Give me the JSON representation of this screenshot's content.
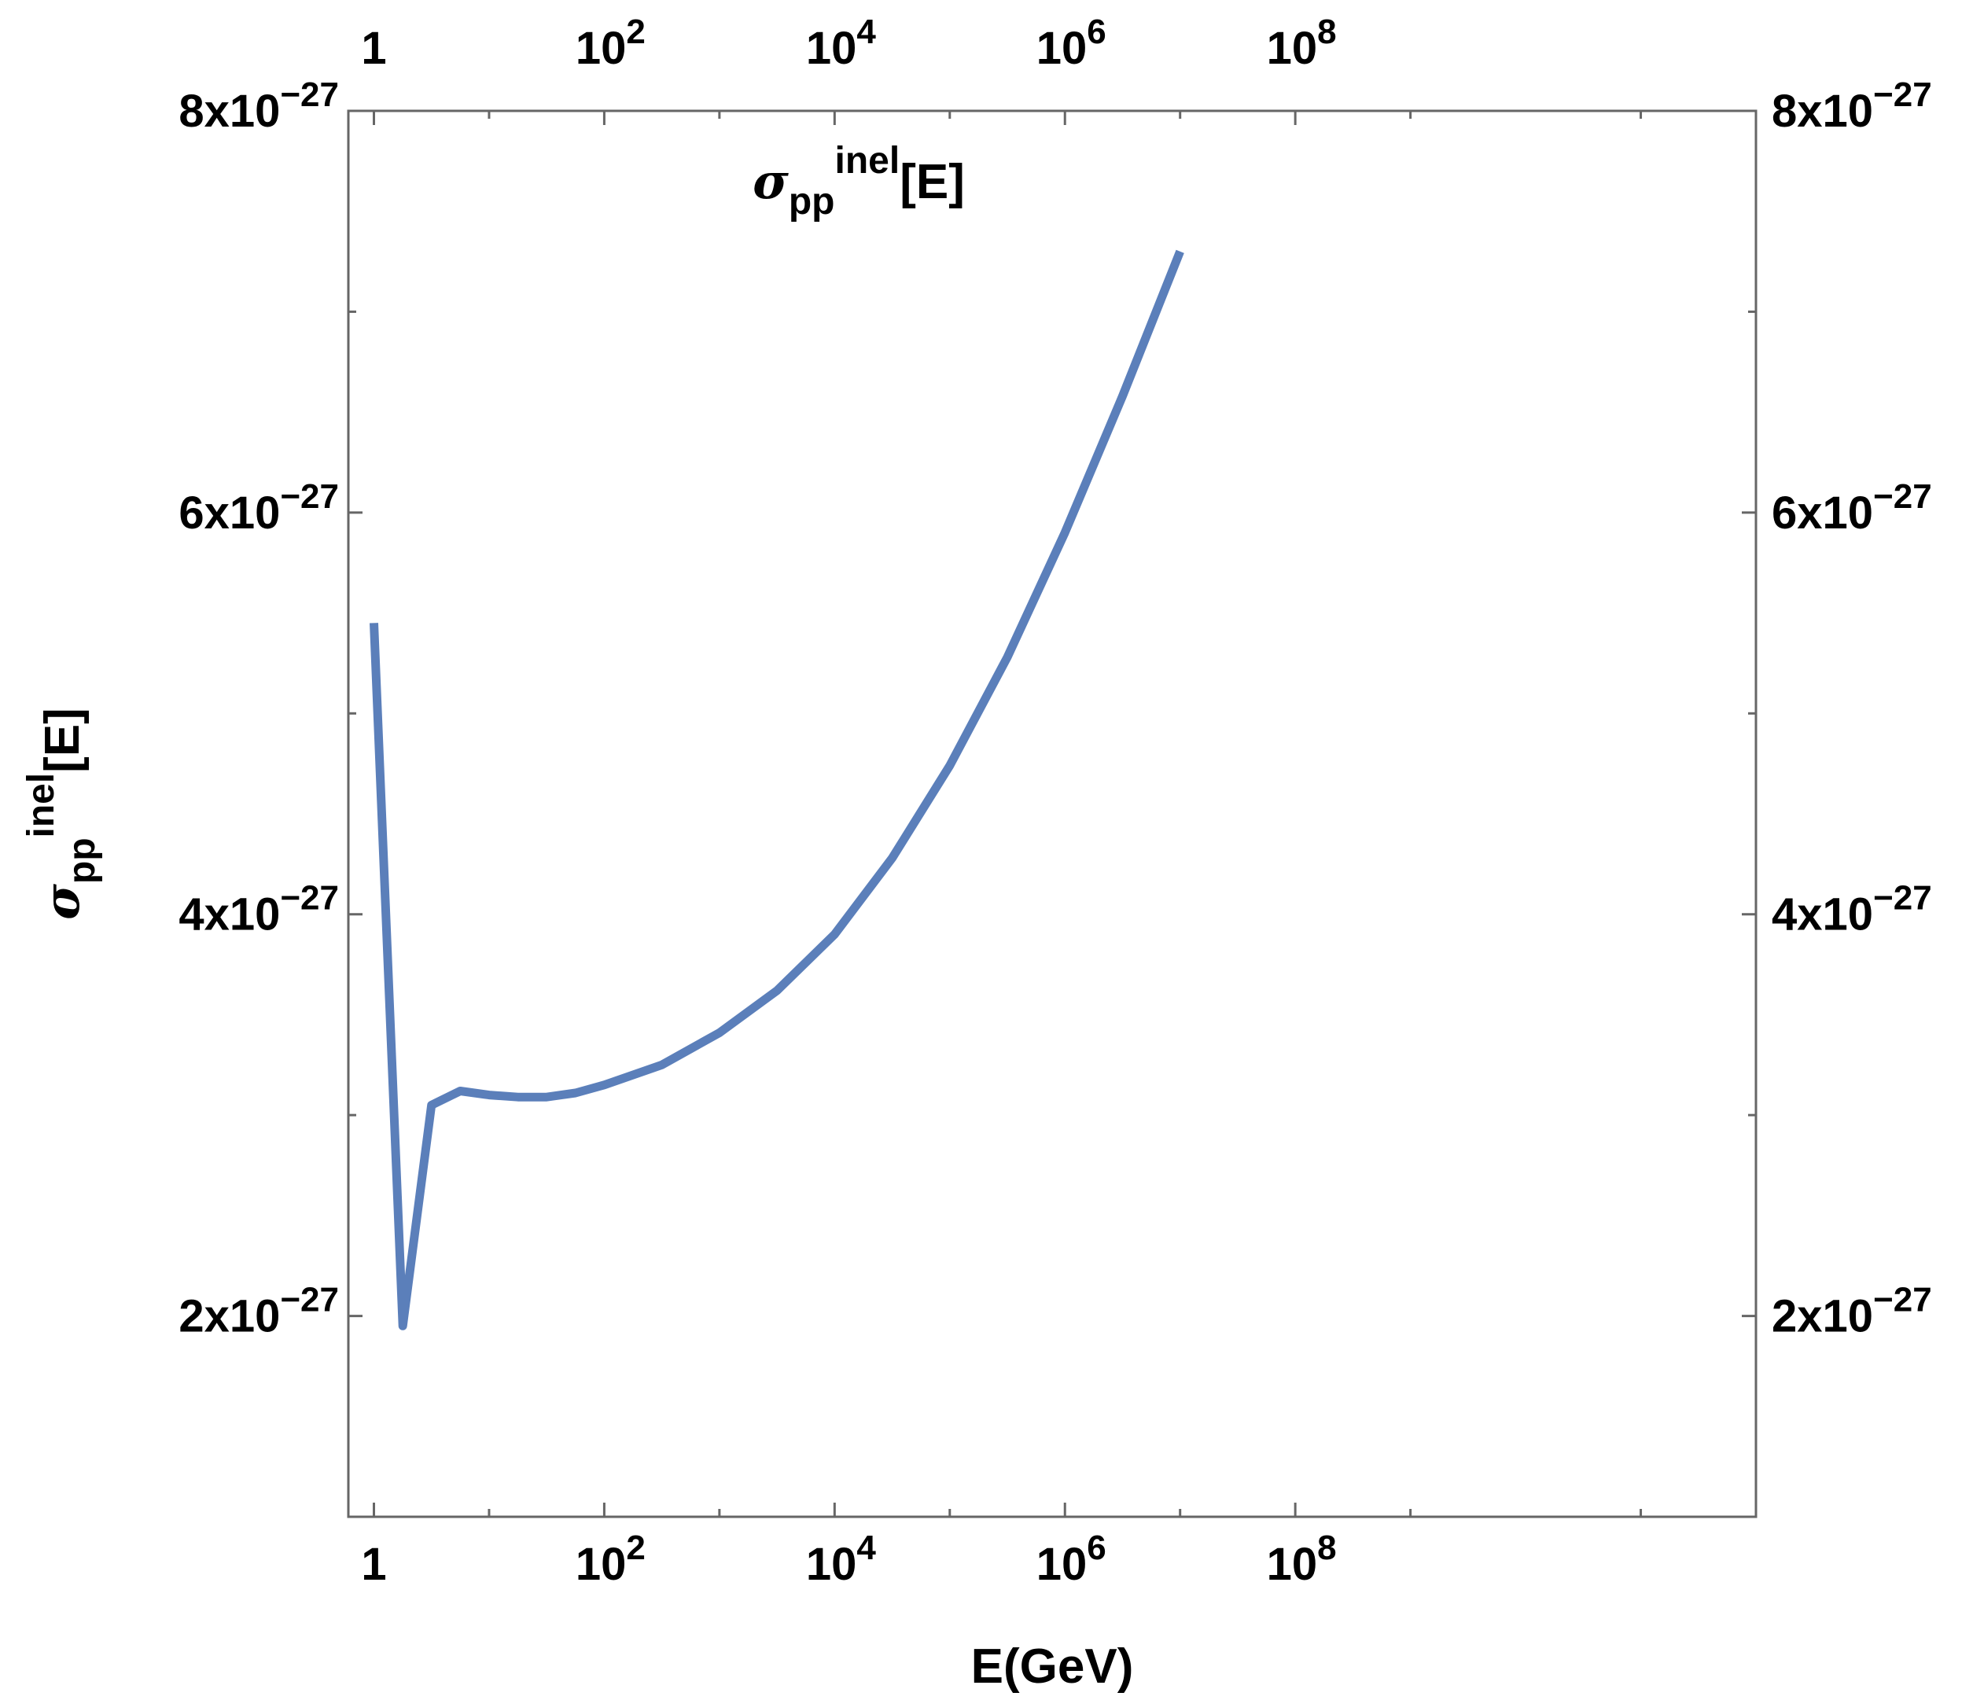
{
  "chart_data": {
    "type": "line",
    "title": "σ_pp^inel[E]",
    "title_parts": {
      "sigma": "σ",
      "sub": "pp",
      "sup": "inel",
      "arg": "[E]"
    },
    "xlabel": "E(GeV)",
    "ylabel_parts": {
      "sigma": "σ",
      "sub": "pp",
      "sup": "inel",
      "arg": "[E]"
    },
    "x_scale": "log",
    "xlim": [
      0.6,
      1000000000000.0
    ],
    "ylim": [
      1e-27,
      8e-27
    ],
    "x_ticks": [
      {
        "value": 1,
        "mant": "1",
        "exp": ""
      },
      {
        "value": 100,
        "mant": "10",
        "exp": "2"
      },
      {
        "value": 10000,
        "mant": "10",
        "exp": "4"
      },
      {
        "value": 1000000,
        "mant": "10",
        "exp": "6"
      },
      {
        "value": 100000000,
        "mant": "10",
        "exp": "8"
      }
    ],
    "y_ticks": [
      {
        "value": 2e-27,
        "mant": "2x10",
        "exp": "−27"
      },
      {
        "value": 4e-27,
        "mant": "4x10",
        "exp": "−27"
      },
      {
        "value": 6e-27,
        "mant": "6x10",
        "exp": "−27"
      },
      {
        "value": 8e-27,
        "mant": "8x10",
        "exp": "−27"
      }
    ],
    "grid": false,
    "frame": "all sides, ticks labeled on all four sides",
    "series": [
      {
        "color": "#5b7fba",
        "x": [
          1,
          1.78,
          3.16,
          5.62,
          10,
          17.8,
          31.6,
          56.2,
          100,
          316,
          1000,
          3162,
          10000,
          31623,
          100000,
          316228,
          1000000,
          3162278,
          10000000
        ],
        "y": [
          5.45e-27,
          1.95e-27,
          3.05e-27,
          3.12e-27,
          3.1e-27,
          3.09e-27,
          3.09e-27,
          3.11e-27,
          3.15e-27,
          3.25e-27,
          3.41e-27,
          3.62e-27,
          3.9e-27,
          4.28e-27,
          4.74e-27,
          5.28e-27,
          5.9e-27,
          6.58e-27,
          7.3e-27
        ]
      }
    ]
  }
}
